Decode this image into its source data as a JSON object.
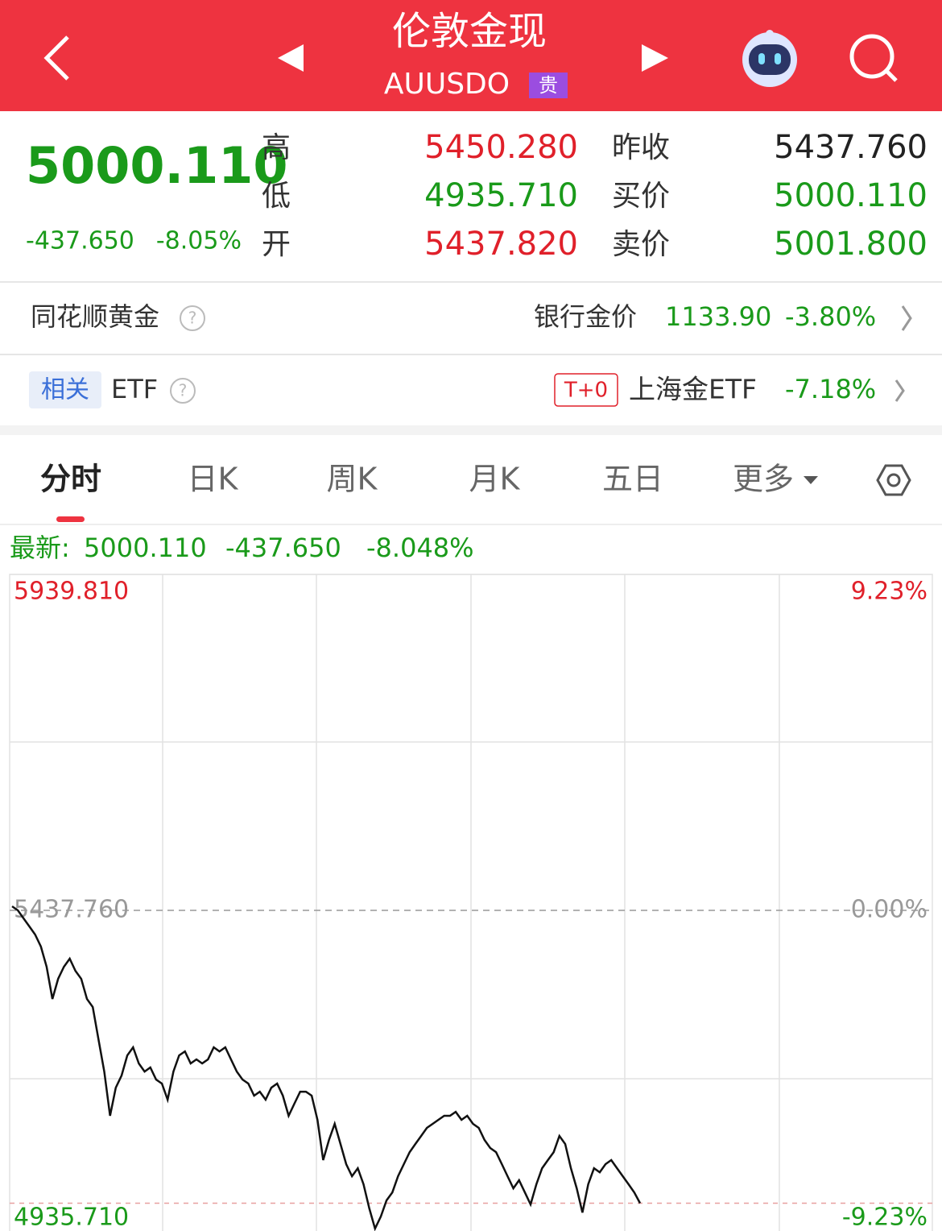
{
  "header": {
    "title": "伦敦金现",
    "code": "AUUSDO",
    "badge": "贵"
  },
  "quote": {
    "price": "5000.110",
    "change": "-437.650",
    "change_pct": "-8.05%",
    "stats": [
      {
        "label": "高",
        "value": "5450.280"
      },
      {
        "label": "低",
        "value": "4935.710"
      },
      {
        "label": "开",
        "value": "5437.820"
      },
      {
        "label": "昨收",
        "value": "5437.760"
      },
      {
        "label": "买价",
        "value": "5000.110"
      },
      {
        "label": "卖价",
        "value": "5001.800"
      }
    ]
  },
  "gold_row": {
    "title": "同花顺黄金",
    "help": "?",
    "label": "银行金价",
    "price": "1133.90",
    "change_pct": "-3.80%"
  },
  "etf_row": {
    "badge": "相关",
    "title": "ETF",
    "help": "?",
    "tag": "T+0",
    "name": "上海金ETF",
    "change_pct": "-7.18%"
  },
  "tabs": [
    "分时",
    "日K",
    "周K",
    "月K",
    "五日",
    "更多"
  ],
  "latest": {
    "label": "最新:",
    "price": "5000.110",
    "change": "-437.650",
    "change_pct": "-8.048%"
  },
  "chart_data": {
    "type": "line",
    "color": "#111111",
    "values": [
      5443.8,
      5437.8,
      5425.7,
      5413.7,
      5401.6,
      5383.6,
      5353.5,
      5305.3,
      5335.4,
      5353.5,
      5365.5,
      5347.4,
      5335.4,
      5305.3,
      5293.3,
      5245.1,
      5196.9,
      5130.7,
      5172.8,
      5190.9,
      5221.0,
      5233.1,
      5209.0,
      5196.9,
      5203.0,
      5184.9,
      5178.9,
      5154.8,
      5196.9,
      5221.0,
      5227.0,
      5209.0,
      5215.0,
      5209.0,
      5215.0,
      5233.1,
      5227.0,
      5233.1,
      5215.0,
      5196.9,
      5184.9,
      5178.9,
      5160.8,
      5166.8,
      5154.8,
      5172.8,
      5178.9,
      5160.8,
      5130.7,
      5148.8,
      5166.8,
      5166.8,
      5160.8,
      5124.7,
      5064.5,
      5094.6,
      5118.7,
      5088.6,
      5058.5,
      5040.4,
      5052.4,
      5028.4,
      4992.3,
      4962.2,
      4980.2,
      5004.3,
      5016.3,
      5040.4,
      5058.5,
      5076.5,
      5088.6,
      5100.6,
      5112.7,
      5118.7,
      5124.7,
      5130.7,
      5130.7,
      5136.7,
      5124.7,
      5130.7,
      5118.7,
      5112.7,
      5094.6,
      5082.6,
      5076.5,
      5058.5,
      5040.4,
      5022.4,
      5034.4,
      5016.3,
      4998.3,
      5028.4,
      5052.4,
      5064.5,
      5076.5,
      5100.6,
      5088.6,
      5052.4,
      5022.4,
      4986.2,
      5028.4,
      5052.4,
      5046.4,
      5058.5,
      5064.5,
      5052.4,
      5040.4,
      5028.4,
      5016.3,
      5000.1
    ],
    "ylim": [
      4935.71,
      5939.81
    ],
    "yticks": [
      {
        "value": 5939.81,
        "label": "5939.810"
      },
      {
        "value": 5437.76,
        "label": "5437.760"
      },
      {
        "value": 4935.71,
        "label": "4935.710"
      }
    ],
    "y2lim": [
      -9.23,
      9.23
    ],
    "y2ticks": [
      {
        "value": 9.23,
        "label": "9.23%"
      },
      {
        "value": 0,
        "label": "0.00%"
      },
      {
        "value": -9.23,
        "label": "-9.23%"
      }
    ]
  }
}
